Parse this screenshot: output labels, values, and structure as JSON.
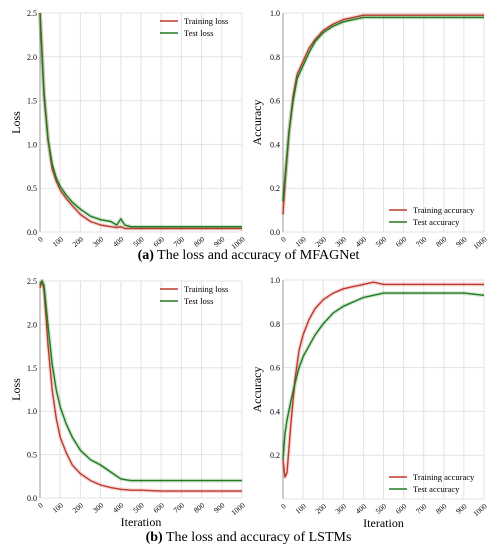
{
  "captions": {
    "top_prefix": "(a)",
    "top_text": "The loss and accuracy of MFAGNet",
    "bottom_prefix": "(b)",
    "bottom_text": "The loss and accuracy of LSTMs"
  },
  "colors": {
    "training": "#c0392b",
    "test": "#1e7b1e",
    "grid": "#e3e3e3",
    "axis": "#999999",
    "text": "#000000"
  },
  "chart_data": [
    {
      "id": "mfagnet-loss",
      "type": "line",
      "title": "",
      "xlabel": "",
      "ylabel": "Loss",
      "xlim": [
        0,
        1000
      ],
      "ylim": [
        0,
        2.5
      ],
      "xticks": [
        0,
        100,
        200,
        300,
        400,
        500,
        600,
        700,
        800,
        900,
        1000
      ],
      "yticks": [
        0.0,
        0.5,
        1.0,
        1.5,
        2.0,
        2.5
      ],
      "ytick_labels": [
        "0.0",
        "0.5",
        "1.0",
        "1.5",
        "2.0",
        "2.5"
      ],
      "legend": "top-right",
      "grid": true,
      "series": [
        {
          "name": "Training loss",
          "color": "#c0392b",
          "x": [
            0,
            20,
            40,
            60,
            80,
            100,
            130,
            160,
            200,
            250,
            300,
            350,
            380,
            400,
            420,
            450,
            500,
            600,
            700,
            800,
            900,
            1000
          ],
          "y": [
            2.5,
            1.6,
            1.05,
            0.72,
            0.58,
            0.48,
            0.38,
            0.3,
            0.2,
            0.12,
            0.08,
            0.06,
            0.05,
            0.06,
            0.04,
            0.04,
            0.04,
            0.04,
            0.04,
            0.04,
            0.04,
            0.04
          ]
        },
        {
          "name": "Test loss",
          "color": "#1e7b1e",
          "x": [
            0,
            20,
            40,
            60,
            80,
            100,
            130,
            160,
            200,
            250,
            300,
            350,
            380,
            400,
            420,
            450,
            500,
            600,
            700,
            800,
            900,
            1000
          ],
          "y": [
            2.5,
            1.55,
            1.05,
            0.78,
            0.62,
            0.52,
            0.42,
            0.34,
            0.26,
            0.18,
            0.14,
            0.12,
            0.08,
            0.15,
            0.08,
            0.06,
            0.06,
            0.06,
            0.06,
            0.06,
            0.06,
            0.06
          ]
        }
      ]
    },
    {
      "id": "mfagnet-accuracy",
      "type": "line",
      "title": "",
      "xlabel": "",
      "ylabel": "Accuracy",
      "xlim": [
        0,
        1000
      ],
      "ylim": [
        0,
        1.0
      ],
      "xticks": [
        0,
        100,
        200,
        300,
        400,
        500,
        600,
        700,
        800,
        900,
        1000
      ],
      "yticks": [
        0.0,
        0.2,
        0.4,
        0.6,
        0.8,
        1.0
      ],
      "ytick_labels": [
        "0.0",
        "0.2",
        "0.4",
        "0.6",
        "0.8",
        "1.0"
      ],
      "legend": "bottom-right",
      "grid": true,
      "series": [
        {
          "name": "Training accuracy",
          "color": "#c0392b",
          "x": [
            0,
            10,
            30,
            50,
            70,
            100,
            130,
            160,
            200,
            250,
            300,
            350,
            400,
            450,
            500,
            600,
            700,
            800,
            900,
            1000
          ],
          "y": [
            0.08,
            0.22,
            0.45,
            0.62,
            0.72,
            0.78,
            0.84,
            0.88,
            0.92,
            0.95,
            0.97,
            0.98,
            0.99,
            0.99,
            0.99,
            0.99,
            0.99,
            0.99,
            0.99,
            0.99
          ]
        },
        {
          "name": "Test accuracy",
          "color": "#1e7b1e",
          "x": [
            0,
            10,
            30,
            50,
            70,
            100,
            130,
            160,
            200,
            250,
            300,
            350,
            400,
            450,
            500,
            600,
            700,
            800,
            900,
            1000
          ],
          "y": [
            0.14,
            0.25,
            0.46,
            0.6,
            0.7,
            0.76,
            0.82,
            0.87,
            0.91,
            0.94,
            0.96,
            0.97,
            0.98,
            0.98,
            0.98,
            0.98,
            0.98,
            0.98,
            0.98,
            0.98
          ]
        }
      ]
    },
    {
      "id": "lstm-loss",
      "type": "line",
      "title": "",
      "xlabel": "Iteration",
      "ylabel": "Loss",
      "xlim": [
        0,
        1000
      ],
      "ylim": [
        0,
        2.5
      ],
      "xticks": [
        0,
        100,
        200,
        300,
        400,
        500,
        600,
        700,
        800,
        900,
        1000
      ],
      "yticks": [
        0.0,
        0.5,
        1.0,
        1.5,
        2.0,
        2.5
      ],
      "ytick_labels": [
        "0.0",
        "0.5",
        "1.0",
        "1.5",
        "2.0",
        "2.5"
      ],
      "legend": "top-right",
      "grid": true,
      "series": [
        {
          "name": "Training loss",
          "color": "#c0392b",
          "x": [
            0,
            10,
            20,
            40,
            60,
            80,
            100,
            130,
            160,
            200,
            250,
            300,
            350,
            400,
            450,
            500,
            600,
            700,
            800,
            900,
            1000
          ],
          "y": [
            2.42,
            2.5,
            2.4,
            1.75,
            1.25,
            0.92,
            0.7,
            0.52,
            0.38,
            0.28,
            0.2,
            0.15,
            0.12,
            0.1,
            0.09,
            0.09,
            0.08,
            0.08,
            0.08,
            0.08,
            0.08
          ]
        },
        {
          "name": "Test loss",
          "color": "#1e7b1e",
          "x": [
            0,
            10,
            20,
            40,
            60,
            80,
            100,
            130,
            160,
            200,
            250,
            300,
            350,
            400,
            450,
            500,
            600,
            700,
            800,
            900,
            1000
          ],
          "y": [
            2.45,
            2.5,
            2.45,
            1.98,
            1.55,
            1.25,
            1.05,
            0.85,
            0.7,
            0.55,
            0.44,
            0.38,
            0.3,
            0.22,
            0.2,
            0.2,
            0.2,
            0.2,
            0.2,
            0.2,
            0.2
          ]
        }
      ]
    },
    {
      "id": "lstm-accuracy",
      "type": "line",
      "title": "",
      "xlabel": "Iteration",
      "ylabel": "Accuracy",
      "xlim": [
        0,
        1000
      ],
      "ylim": [
        0,
        1.0
      ],
      "xticks": [
        0,
        100,
        200,
        300,
        400,
        500,
        600,
        700,
        800,
        900,
        1000
      ],
      "yticks": [
        0.0,
        0.2,
        0.4,
        0.6,
        0.8,
        1.0
      ],
      "ytick_labels": [
        "",
        "0.2",
        "0.4",
        "0.6",
        "0.8",
        "1.0"
      ],
      "legend": "bottom-right",
      "grid": true,
      "series": [
        {
          "name": "Training accuracy",
          "color": "#c0392b",
          "x": [
            0,
            10,
            20,
            40,
            60,
            80,
            100,
            130,
            160,
            200,
            250,
            300,
            350,
            400,
            450,
            500,
            600,
            700,
            800,
            900,
            1000
          ],
          "y": [
            0.18,
            0.1,
            0.12,
            0.35,
            0.55,
            0.68,
            0.75,
            0.82,
            0.87,
            0.91,
            0.94,
            0.96,
            0.97,
            0.98,
            0.99,
            0.98,
            0.98,
            0.98,
            0.98,
            0.98,
            0.98
          ]
        },
        {
          "name": "Test accuracy",
          "color": "#1e7b1e",
          "x": [
            0,
            10,
            20,
            40,
            60,
            80,
            100,
            130,
            160,
            200,
            250,
            300,
            350,
            400,
            450,
            500,
            600,
            700,
            800,
            900,
            1000
          ],
          "y": [
            0.18,
            0.3,
            0.36,
            0.45,
            0.53,
            0.6,
            0.65,
            0.7,
            0.75,
            0.8,
            0.85,
            0.88,
            0.9,
            0.92,
            0.93,
            0.94,
            0.94,
            0.94,
            0.94,
            0.94,
            0.93
          ]
        }
      ]
    }
  ]
}
